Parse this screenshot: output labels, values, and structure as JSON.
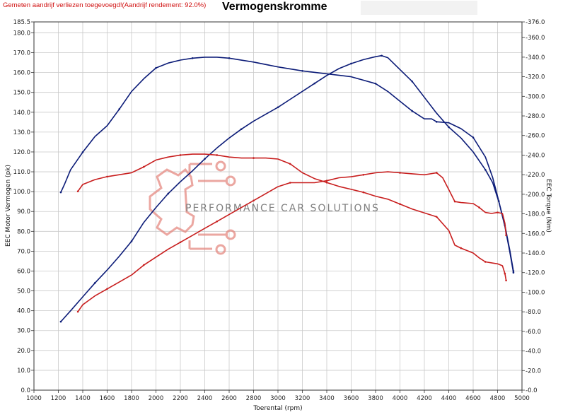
{
  "header": {
    "note": "Gemeten aandrijf verliezen toegevoegd!(Aandrijf rendement: 92.0%)",
    "title": "Vermogenskromme"
  },
  "watermark": {
    "text": "PERFORMANCE CAR SOLUTIONS",
    "color": "#e58a82"
  },
  "chart_data": {
    "type": "line",
    "title": "Vermogenskromme",
    "xlabel": "Toerental (rpm)",
    "ylabel_left": "EEC Motor Vermogen (pk)",
    "ylabel_right": "EEC Torque (Nm)",
    "xlim": [
      1000,
      5000
    ],
    "ylim_left": [
      0,
      185.5
    ],
    "ylim_right": [
      0,
      376
    ],
    "x_ticks": [
      1000,
      1200,
      1400,
      1600,
      1800,
      2000,
      2200,
      2400,
      2600,
      2800,
      3000,
      3200,
      3400,
      3600,
      3800,
      4000,
      4200,
      4400,
      4600,
      4800,
      5000
    ],
    "left_ticks": [
      "0.0",
      "10.0",
      "20.0",
      "30.0",
      "40.0",
      "50.0",
      "60.0",
      "70.0",
      "80.0",
      "90.0",
      "100.0",
      "110.0",
      "120.0",
      "130.0",
      "140.0",
      "150.0",
      "160.0",
      "170.0",
      "180.0",
      "185.5"
    ],
    "right_ticks": [
      "0.0",
      "20.0",
      "40.0",
      "60.0",
      "80.0",
      "100.0",
      "120.0",
      "140.0",
      "160.0",
      "180.0",
      "200.0",
      "220.0",
      "240.0",
      "260.0",
      "280.0",
      "300.0",
      "320.0",
      "340.0",
      "360.0",
      "376.0"
    ],
    "grid": true,
    "colors": {
      "blue": "#0c1c78",
      "red": "#c81e1e"
    },
    "series": [
      {
        "key": "power_tuned",
        "axis": "left",
        "color": "#0c1c78",
        "points": [
          [
            1220,
            34.5
          ],
          [
            1300,
            40
          ],
          [
            1400,
            47
          ],
          [
            1500,
            54
          ],
          [
            1600,
            60.5
          ],
          [
            1700,
            67.5
          ],
          [
            1800,
            75
          ],
          [
            1900,
            84.5
          ],
          [
            2000,
            92
          ],
          [
            2100,
            99
          ],
          [
            2200,
            105
          ],
          [
            2300,
            110.5
          ],
          [
            2400,
            116.5
          ],
          [
            2500,
            122
          ],
          [
            2600,
            127
          ],
          [
            2700,
            131.5
          ],
          [
            2800,
            135.5
          ],
          [
            2900,
            139
          ],
          [
            3000,
            142.5
          ],
          [
            3100,
            146.5
          ],
          [
            3200,
            150.5
          ],
          [
            3300,
            154.5
          ],
          [
            3400,
            158.5
          ],
          [
            3500,
            162
          ],
          [
            3600,
            164.5
          ],
          [
            3700,
            166.5
          ],
          [
            3800,
            168
          ],
          [
            3850,
            168.5
          ],
          [
            3900,
            167.5
          ],
          [
            4000,
            161.5
          ],
          [
            4100,
            155.5
          ],
          [
            4200,
            147.5
          ],
          [
            4300,
            139.5
          ],
          [
            4400,
            132.5
          ],
          [
            4500,
            127
          ],
          [
            4600,
            120
          ],
          [
            4700,
            111
          ],
          [
            4760,
            104.5
          ],
          [
            4810,
            95
          ],
          [
            4860,
            83
          ],
          [
            4900,
            70.5
          ],
          [
            4930,
            60
          ]
        ]
      },
      {
        "key": "torque_tuned",
        "axis": "right",
        "color": "#0c1c78",
        "points": [
          [
            1220,
            202
          ],
          [
            1250,
            210
          ],
          [
            1300,
            225
          ],
          [
            1400,
            243
          ],
          [
            1500,
            259
          ],
          [
            1600,
            270
          ],
          [
            1700,
            287
          ],
          [
            1800,
            305
          ],
          [
            1900,
            318
          ],
          [
            2000,
            329
          ],
          [
            2100,
            334
          ],
          [
            2200,
            337
          ],
          [
            2300,
            339
          ],
          [
            2400,
            340
          ],
          [
            2500,
            340
          ],
          [
            2600,
            339
          ],
          [
            2800,
            335
          ],
          [
            3000,
            330
          ],
          [
            3200,
            326
          ],
          [
            3400,
            323
          ],
          [
            3600,
            320
          ],
          [
            3800,
            313
          ],
          [
            3900,
            305
          ],
          [
            4000,
            295
          ],
          [
            4100,
            285
          ],
          [
            4200,
            277
          ],
          [
            4260,
            277
          ],
          [
            4300,
            274
          ],
          [
            4400,
            273
          ],
          [
            4500,
            267
          ],
          [
            4600,
            258
          ],
          [
            4700,
            238
          ],
          [
            4760,
            217
          ],
          [
            4810,
            193
          ],
          [
            4860,
            167
          ],
          [
            4900,
            141
          ],
          [
            4930,
            120
          ]
        ]
      },
      {
        "key": "power_stock",
        "axis": "left",
        "color": "#c81e1e",
        "points": [
          [
            1360,
            39.5
          ],
          [
            1400,
            43
          ],
          [
            1500,
            47.5
          ],
          [
            1600,
            51
          ],
          [
            1700,
            54.5
          ],
          [
            1800,
            58
          ],
          [
            1900,
            63
          ],
          [
            2000,
            67
          ],
          [
            2100,
            71
          ],
          [
            2200,
            74.5
          ],
          [
            2300,
            78
          ],
          [
            2400,
            81.5
          ],
          [
            2500,
            85
          ],
          [
            2600,
            88.5
          ],
          [
            2700,
            92
          ],
          [
            2800,
            95.5
          ],
          [
            2900,
            99
          ],
          [
            3000,
            102.5
          ],
          [
            3100,
            104.5
          ],
          [
            3200,
            104.5
          ],
          [
            3300,
            104.5
          ],
          [
            3400,
            105.5
          ],
          [
            3500,
            107
          ],
          [
            3600,
            107.5
          ],
          [
            3700,
            108.5
          ],
          [
            3800,
            109.5
          ],
          [
            3900,
            110
          ],
          [
            4000,
            109.5
          ],
          [
            4100,
            109
          ],
          [
            4200,
            108.5
          ],
          [
            4300,
            109.5
          ],
          [
            4350,
            107
          ],
          [
            4400,
            101
          ],
          [
            4450,
            95
          ],
          [
            4500,
            94.5
          ],
          [
            4600,
            94
          ],
          [
            4650,
            92
          ],
          [
            4700,
            89.5
          ],
          [
            4750,
            89
          ],
          [
            4800,
            89.5
          ],
          [
            4840,
            89
          ],
          [
            4860,
            84
          ],
          [
            4870,
            78
          ]
        ]
      },
      {
        "key": "torque_stock",
        "axis": "right",
        "color": "#c81e1e",
        "points": [
          [
            1360,
            203
          ],
          [
            1400,
            210
          ],
          [
            1500,
            215
          ],
          [
            1600,
            218
          ],
          [
            1700,
            220
          ],
          [
            1800,
            222
          ],
          [
            1900,
            228
          ],
          [
            2000,
            235
          ],
          [
            2100,
            238
          ],
          [
            2200,
            240
          ],
          [
            2300,
            241
          ],
          [
            2400,
            241
          ],
          [
            2500,
            240
          ],
          [
            2600,
            238
          ],
          [
            2700,
            237
          ],
          [
            2800,
            237
          ],
          [
            2900,
            237
          ],
          [
            3000,
            236
          ],
          [
            3100,
            231
          ],
          [
            3200,
            222
          ],
          [
            3300,
            216
          ],
          [
            3400,
            212
          ],
          [
            3500,
            208
          ],
          [
            3600,
            205
          ],
          [
            3700,
            202
          ],
          [
            3800,
            198
          ],
          [
            3900,
            195
          ],
          [
            4000,
            190
          ],
          [
            4100,
            185
          ],
          [
            4200,
            181
          ],
          [
            4300,
            177
          ],
          [
            4400,
            163
          ],
          [
            4450,
            148
          ],
          [
            4500,
            145
          ],
          [
            4600,
            140
          ],
          [
            4650,
            135
          ],
          [
            4700,
            131
          ],
          [
            4800,
            129
          ],
          [
            4840,
            127
          ],
          [
            4860,
            119
          ],
          [
            4870,
            112
          ]
        ]
      }
    ]
  }
}
